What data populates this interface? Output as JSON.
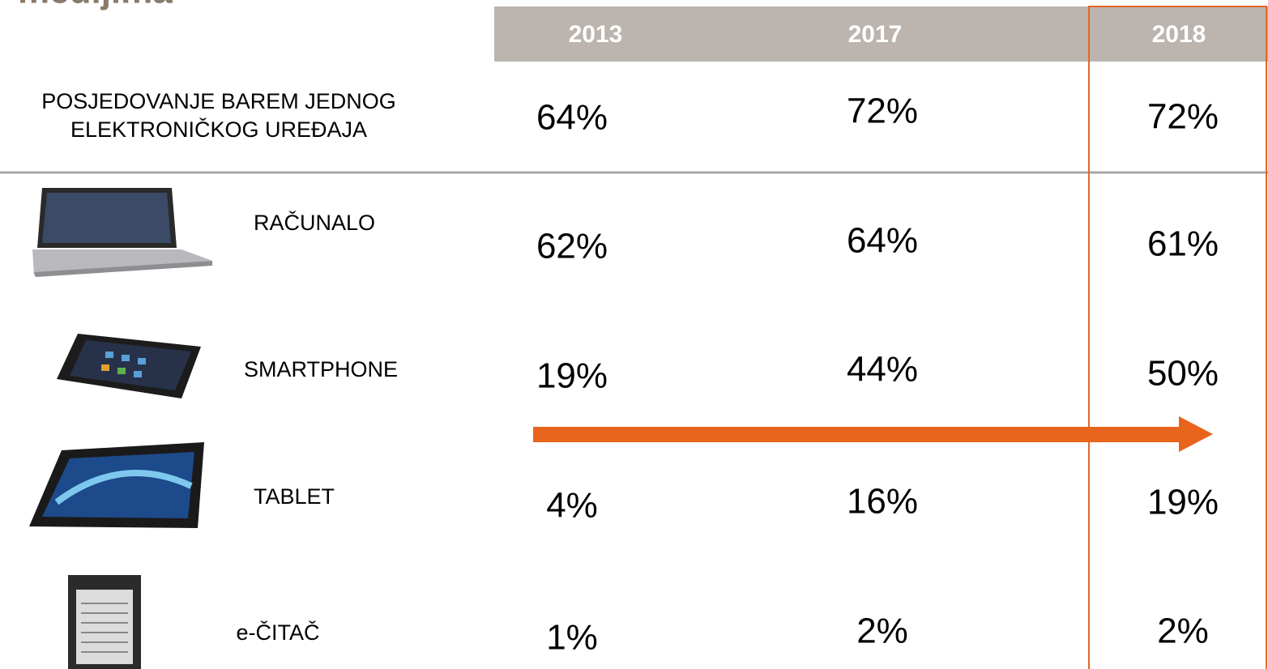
{
  "title": "medijima",
  "table": {
    "columns": [
      "2013",
      "2017",
      "2018"
    ],
    "rows": [
      {
        "label": [
          "POSJEDOVANJE BAREM JEDNOG",
          "ELEKTRONIČKOG UREĐAJA"
        ],
        "values": [
          "64%",
          "72%",
          "72%"
        ]
      },
      {
        "label": [
          "RAČUNALO"
        ],
        "values": [
          "62%",
          "64%",
          "61%"
        ]
      },
      {
        "label": [
          "SMARTPHONE"
        ],
        "values": [
          "19%",
          "44%",
          "50%"
        ]
      },
      {
        "label": [
          "TABLET"
        ],
        "values": [
          "4%",
          "16%",
          "19%"
        ]
      },
      {
        "label": [
          "e-ČITAČ"
        ],
        "values": [
          "1%",
          "2%",
          "2%"
        ]
      }
    ]
  }
}
